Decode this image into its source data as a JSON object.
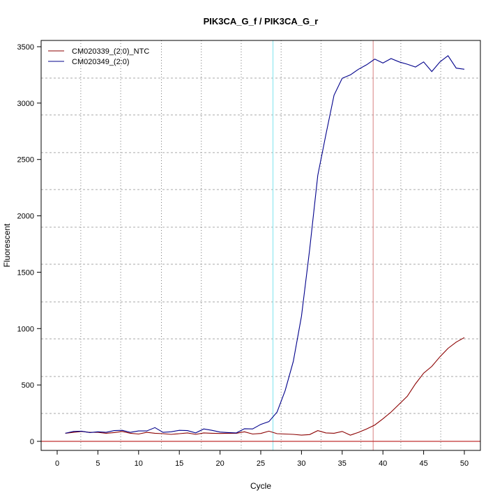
{
  "chart_data": {
    "type": "line",
    "title": "PIK3CA_G_f / PIK3CA_G_r",
    "xlabel": "Cycle",
    "ylabel": "Fluorescent",
    "xlim": [
      -2,
      52
    ],
    "ylim": [
      -80,
      3560
    ],
    "xticks": [
      0,
      5,
      10,
      15,
      20,
      25,
      30,
      35,
      40,
      45,
      50
    ],
    "yticks": [
      0,
      500,
      1000,
      1500,
      2000,
      2500,
      3000,
      3500
    ],
    "grid": {
      "vertical_dotted": [
        2.9,
        7.8,
        12.8,
        17.7,
        22.6,
        27.5,
        32.4,
        37.3,
        42.2,
        47.1
      ],
      "horizontal_dashed": [
        247,
        575,
        909,
        1237,
        1571,
        1899,
        2233,
        2561,
        2895,
        3222
      ]
    },
    "legend": "top-left",
    "x": [
      1,
      2,
      3,
      4,
      5,
      6,
      7,
      8,
      9,
      10,
      11,
      12,
      13,
      14,
      15,
      16,
      17,
      18,
      19,
      20,
      21,
      22,
      23,
      24,
      25,
      26,
      27,
      28,
      29,
      30,
      31,
      32,
      33,
      34,
      35,
      36,
      37,
      38,
      39,
      40,
      41,
      42,
      43,
      44,
      45,
      46,
      47,
      48,
      49,
      50
    ],
    "series": [
      {
        "name": "CM020339_(2:0)_NTC",
        "color": "#8B0000",
        "values": [
          72,
          80,
          88,
          80,
          80,
          72,
          78,
          88,
          72,
          65,
          80,
          72,
          68,
          62,
          68,
          75,
          62,
          75,
          72,
          70,
          72,
          72,
          85,
          65,
          70,
          90,
          68,
          65,
          62,
          55,
          60,
          95,
          75,
          72,
          88,
          55,
          80,
          110,
          145,
          200,
          260,
          330,
          400,
          510,
          605,
          665,
          750,
          825,
          880,
          920
        ]
      },
      {
        "name": "CM020349_(2:0)",
        "color": "#00008B",
        "values": [
          72,
          88,
          90,
          78,
          85,
          80,
          95,
          98,
          80,
          92,
          92,
          122,
          80,
          85,
          98,
          95,
          75,
          110,
          98,
          82,
          78,
          75,
          112,
          110,
          150,
          175,
          260,
          450,
          710,
          1110,
          1700,
          2360,
          2720,
          3070,
          3220,
          3250,
          3300,
          3340,
          3390,
          3355,
          3395,
          3365,
          3345,
          3320,
          3365,
          3280,
          3365,
          3420,
          3310,
          3300
        ]
      }
    ],
    "threshold_y": 0,
    "threshold_color": "#C03030",
    "vertical_markers": [
      {
        "x": 26.5,
        "color": "#7FE6EE"
      },
      {
        "x": 38.8,
        "color": "#D88080"
      }
    ]
  }
}
